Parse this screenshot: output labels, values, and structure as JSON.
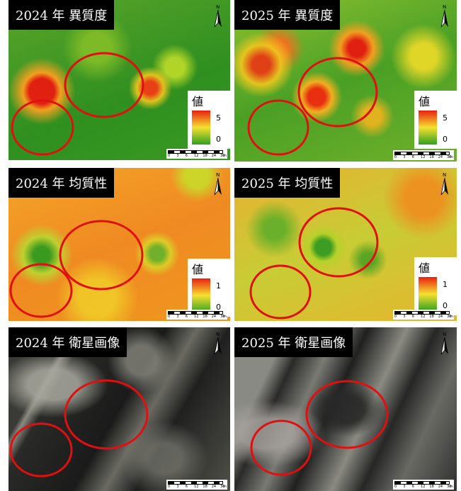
{
  "panels": [
    {
      "title": "2024 年 異質度",
      "legend": {
        "title": "値",
        "max": 5,
        "min": 0
      }
    },
    {
      "title": "2025 年 異質度",
      "legend": {
        "title": "値",
        "max": 5,
        "min": 0
      }
    },
    {
      "title": "2024 年 均質性",
      "legend": {
        "title": "値",
        "max": 1,
        "min": 0
      }
    },
    {
      "title": "2025 年 均質性",
      "legend": {
        "title": "値",
        "max": 1,
        "min": 0
      }
    },
    {
      "title": "2024 年 衛星画像"
    },
    {
      "title": "2025 年 衛星画像"
    }
  ],
  "scale_bar": {
    "labels": [
      "0",
      "3",
      "6",
      "12",
      "18",
      "24",
      "30"
    ],
    "unit": "m"
  },
  "north": "N"
}
